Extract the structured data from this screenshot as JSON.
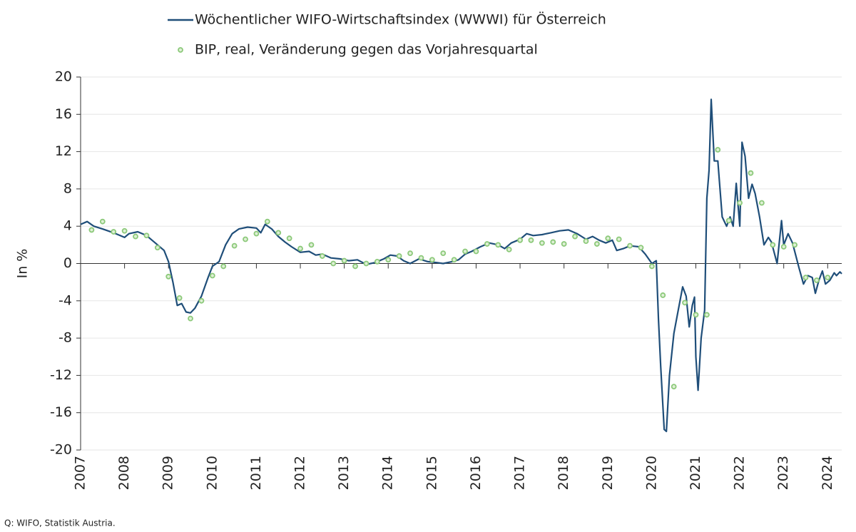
{
  "chart_data": {
    "type": "line",
    "y_label": "In %",
    "source": "Q: WIFO, Statistik Austria.",
    "xlim": [
      2007,
      2024.32
    ],
    "xticks": [
      2007,
      2008,
      2009,
      2010,
      2011,
      2012,
      2013,
      2014,
      2015,
      2016,
      2017,
      2018,
      2019,
      2020,
      2021,
      2022,
      2023,
      2024
    ],
    "ylim": [
      -20,
      20
    ],
    "yticks": [
      -20,
      -16,
      -12,
      -8,
      -4,
      0,
      4,
      8,
      12,
      16,
      20
    ],
    "grid": true,
    "legend": "top",
    "series": [
      {
        "name": "Wöchentlicher WIFO-Wirtschaftsindex (WWWI) für Österreich",
        "color": "#1f4e79",
        "style": "line",
        "x": [
          2007.0,
          2007.15,
          2007.3,
          2007.5,
          2007.75,
          2008.0,
          2008.1,
          2008.3,
          2008.5,
          2008.7,
          2008.9,
          2009.0,
          2009.1,
          2009.2,
          2009.3,
          2009.4,
          2009.5,
          2009.6,
          2009.75,
          2009.9,
          2010.0,
          2010.15,
          2010.3,
          2010.45,
          2010.6,
          2010.8,
          2011.0,
          2011.1,
          2011.2,
          2011.35,
          2011.5,
          2011.65,
          2011.8,
          2012.0,
          2012.2,
          2012.35,
          2012.5,
          2012.7,
          2012.9,
          2013.1,
          2013.3,
          2013.5,
          2013.7,
          2013.9,
          2014.05,
          2014.2,
          2014.35,
          2014.5,
          2014.7,
          2014.9,
          2015.1,
          2015.25,
          2015.45,
          2015.6,
          2015.75,
          2015.9,
          2016.1,
          2016.3,
          2016.5,
          2016.65,
          2016.8,
          2017.0,
          2017.15,
          2017.3,
          2017.5,
          2017.7,
          2017.9,
          2018.1,
          2018.3,
          2018.5,
          2018.65,
          2018.8,
          2018.95,
          2019.1,
          2019.2,
          2019.35,
          2019.5,
          2019.7,
          2019.85,
          2020.0,
          2020.1,
          2020.15,
          2020.2,
          2020.28,
          2020.33,
          2020.4,
          2020.5,
          2020.6,
          2020.7,
          2020.78,
          2020.85,
          2020.92,
          2020.97,
          2021.0,
          2021.05,
          2021.12,
          2021.2,
          2021.25,
          2021.3,
          2021.35,
          2021.42,
          2021.5,
          2021.6,
          2021.7,
          2021.78,
          2021.85,
          2021.92,
          2022.0,
          2022.05,
          2022.12,
          2022.2,
          2022.28,
          2022.35,
          2022.45,
          2022.55,
          2022.65,
          2022.72,
          2022.85,
          2022.95,
          2023.0,
          2023.1,
          2023.2,
          2023.35,
          2023.45,
          2023.55,
          2023.65,
          2023.72,
          2023.8,
          2023.88,
          2023.95,
          2024.05,
          2024.15,
          2024.2,
          2024.28,
          2024.32
        ],
        "values": [
          4.2,
          4.5,
          4.0,
          3.7,
          3.3,
          2.8,
          3.2,
          3.4,
          3.0,
          2.2,
          1.4,
          0.2,
          -2.0,
          -4.5,
          -4.3,
          -5.2,
          -5.3,
          -4.8,
          -3.5,
          -1.5,
          -0.3,
          0.2,
          2.0,
          3.2,
          3.7,
          3.9,
          3.8,
          3.3,
          4.2,
          3.7,
          2.9,
          2.3,
          1.8,
          1.2,
          1.3,
          0.9,
          1.0,
          0.6,
          0.5,
          0.3,
          0.4,
          -0.1,
          0.1,
          0.5,
          0.9,
          0.8,
          0.3,
          0.0,
          0.5,
          0.2,
          0.1,
          0.0,
          0.2,
          0.4,
          1.0,
          1.3,
          1.8,
          2.2,
          2.0,
          1.6,
          2.2,
          2.6,
          3.2,
          3.0,
          3.1,
          3.3,
          3.5,
          3.6,
          3.2,
          2.6,
          2.9,
          2.5,
          2.2,
          2.5,
          1.4,
          1.6,
          1.9,
          1.8,
          1.0,
          0.0,
          0.3,
          -6.0,
          -11.0,
          -17.8,
          -18.0,
          -12.0,
          -7.5,
          -5.0,
          -2.5,
          -3.5,
          -6.8,
          -4.5,
          -3.6,
          -10.0,
          -13.6,
          -8.0,
          -5.0,
          7.0,
          10.0,
          17.6,
          11.0,
          11.0,
          5.0,
          4.0,
          5.0,
          4.0,
          8.6,
          4.0,
          13.0,
          11.5,
          7.0,
          8.5,
          7.5,
          5.0,
          2.0,
          2.8,
          2.3,
          0.0,
          4.6,
          2.0,
          3.2,
          2.2,
          -0.5,
          -2.2,
          -1.3,
          -1.5,
          -3.2,
          -1.8,
          -0.8,
          -2.2,
          -1.8,
          -1.0,
          -1.3,
          -0.9,
          -1.1
        ]
      },
      {
        "name": "BIP, real, Veränderung gegen das Vorjahresquartal",
        "color": "#8cc97a",
        "style": "dots",
        "x": [
          2007.25,
          2007.5,
          2007.75,
          2008.0,
          2008.25,
          2008.5,
          2008.75,
          2009.0,
          2009.25,
          2009.5,
          2009.75,
          2010.0,
          2010.25,
          2010.5,
          2010.75,
          2011.0,
          2011.25,
          2011.5,
          2011.75,
          2012.0,
          2012.25,
          2012.5,
          2012.75,
          2013.0,
          2013.25,
          2013.5,
          2013.75,
          2014.0,
          2014.25,
          2014.5,
          2014.75,
          2015.0,
          2015.25,
          2015.5,
          2015.75,
          2016.0,
          2016.25,
          2016.5,
          2016.75,
          2017.0,
          2017.25,
          2017.5,
          2017.75,
          2018.0,
          2018.25,
          2018.5,
          2018.75,
          2019.0,
          2019.25,
          2019.5,
          2019.75,
          2020.0,
          2020.25,
          2020.5,
          2020.75,
          2021.0,
          2021.25,
          2021.5,
          2021.75,
          2022.0,
          2022.25,
          2022.5,
          2022.75,
          2023.0,
          2023.25,
          2023.5,
          2023.75,
          2024.0
        ],
        "values": [
          3.6,
          4.5,
          3.4,
          3.5,
          2.9,
          3.0,
          1.7,
          -1.4,
          -3.7,
          -5.9,
          -4.0,
          -1.3,
          -0.3,
          1.9,
          2.6,
          3.2,
          4.5,
          3.3,
          2.7,
          1.6,
          2.0,
          0.8,
          0.0,
          0.3,
          -0.3,
          0.0,
          0.2,
          0.4,
          0.8,
          1.1,
          0.6,
          0.4,
          1.1,
          0.4,
          1.3,
          1.3,
          2.1,
          2.0,
          1.5,
          2.5,
          2.5,
          2.2,
          2.3,
          2.1,
          2.9,
          2.4,
          2.1,
          2.7,
          2.6,
          1.9,
          1.7,
          -0.3,
          -3.4,
          -13.2,
          -4.2,
          -5.5,
          -5.5,
          12.2,
          4.6,
          6.5,
          9.7,
          6.5,
          2.0,
          1.8,
          2.0,
          -1.5,
          -1.8,
          -1.5
        ]
      }
    ]
  }
}
